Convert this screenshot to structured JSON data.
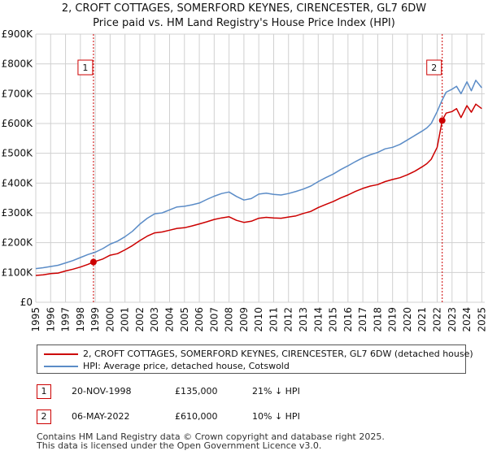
{
  "title_line1": "2, CROFT COTTAGES, SOMERFORD KEYNES, CIRENCESTER, GL7 6DW",
  "title_line2": "Price paid vs. HM Land Registry's House Price Index (HPI)",
  "chart_data": {
    "type": "line",
    "title": "2, CROFT COTTAGES, SOMERFORD KEYNES, CIRENCESTER, GL7 6DW — Price paid vs. HM Land Registry's House Price Index (HPI)",
    "xlabel": "",
    "ylabel": "",
    "xlim": [
      1995,
      2025.2
    ],
    "ylim": [
      0,
      900000
    ],
    "x_ticks": [
      "1995",
      "1996",
      "1997",
      "1998",
      "1999",
      "2000",
      "2001",
      "2002",
      "2003",
      "2004",
      "2005",
      "2006",
      "2007",
      "2008",
      "2009",
      "2010",
      "2011",
      "2012",
      "2013",
      "2014",
      "2015",
      "2016",
      "2017",
      "2018",
      "2019",
      "2020",
      "2021",
      "2022",
      "2023",
      "2024",
      "2025"
    ],
    "y_ticks": [
      {
        "value": 0,
        "label": "£0"
      },
      {
        "value": 100000,
        "label": "£100K"
      },
      {
        "value": 200000,
        "label": "£200K"
      },
      {
        "value": 300000,
        "label": "£300K"
      },
      {
        "value": 400000,
        "label": "£400K"
      },
      {
        "value": 500000,
        "label": "£500K"
      },
      {
        "value": 600000,
        "label": "£600K"
      },
      {
        "value": 700000,
        "label": "£700K"
      },
      {
        "value": 800000,
        "label": "£800K"
      },
      {
        "value": 900000,
        "label": "£900K"
      }
    ],
    "grid": true,
    "series": [
      {
        "name": "2, CROFT COTTAGES, SOMERFORD KEYNES, CIRENCESTER, GL7 6DW (detached house)",
        "color": "#cc0000",
        "x": [
          1995,
          1995.5,
          1996,
          1996.5,
          1997,
          1997.5,
          1998,
          1998.5,
          1998.88,
          1999.5,
          2000,
          2000.5,
          2001,
          2001.5,
          2002,
          2002.5,
          2003,
          2003.5,
          2004,
          2004.5,
          2005,
          2005.5,
          2006,
          2006.5,
          2007,
          2007.5,
          2008,
          2008.5,
          2009,
          2009.5,
          2010,
          2010.5,
          2011,
          2011.5,
          2012,
          2012.5,
          2013,
          2013.5,
          2014,
          2014.5,
          2015,
          2015.5,
          2016,
          2016.5,
          2017,
          2017.5,
          2018,
          2018.5,
          2019,
          2019.5,
          2020,
          2020.5,
          2021,
          2021.3,
          2021.6,
          2022,
          2022.34,
          2022.6,
          2023,
          2023.3,
          2023.6,
          2024,
          2024.3,
          2024.6,
          2025
        ],
        "y": [
          90000,
          92000,
          96000,
          98000,
          105000,
          111000,
          118000,
          127000,
          135000,
          145000,
          158000,
          163000,
          176000,
          190000,
          207000,
          222000,
          233000,
          236000,
          242000,
          248000,
          250000,
          256000,
          263000,
          270000,
          278000,
          283000,
          287000,
          275000,
          268000,
          272000,
          282000,
          285000,
          283000,
          282000,
          286000,
          290000,
          298000,
          305000,
          318000,
          328000,
          338000,
          350000,
          360000,
          372000,
          382000,
          390000,
          395000,
          405000,
          412000,
          418000,
          428000,
          440000,
          455000,
          465000,
          480000,
          520000,
          610000,
          635000,
          640000,
          650000,
          620000,
          660000,
          638000,
          665000,
          650000
        ]
      },
      {
        "name": "HPI: Average price, detached house, Cotswold",
        "color": "#5b8cc7",
        "x": [
          1995,
          1995.5,
          1996,
          1996.5,
          1997,
          1997.5,
          1998,
          1998.5,
          1999,
          1999.5,
          2000,
          2000.5,
          2001,
          2001.5,
          2002,
          2002.5,
          2003,
          2003.5,
          2004,
          2004.5,
          2005,
          2005.5,
          2006,
          2006.5,
          2007,
          2007.5,
          2008,
          2008.5,
          2009,
          2009.5,
          2010,
          2010.5,
          2011,
          2011.5,
          2012,
          2012.5,
          2013,
          2013.5,
          2014,
          2014.5,
          2015,
          2015.5,
          2016,
          2016.5,
          2017,
          2017.5,
          2018,
          2018.5,
          2019,
          2019.5,
          2020,
          2020.5,
          2021,
          2021.3,
          2021.6,
          2022,
          2022.3,
          2022.6,
          2023,
          2023.3,
          2023.6,
          2024,
          2024.3,
          2024.6,
          2025
        ],
        "y": [
          113000,
          116000,
          120000,
          124000,
          132000,
          140000,
          150000,
          160000,
          168000,
          180000,
          195000,
          205000,
          220000,
          238000,
          262000,
          282000,
          297000,
          300000,
          310000,
          320000,
          322000,
          327000,
          333000,
          345000,
          356000,
          365000,
          370000,
          355000,
          343000,
          348000,
          363000,
          366000,
          362000,
          360000,
          365000,
          372000,
          380000,
          390000,
          405000,
          418000,
          430000,
          445000,
          458000,
          472000,
          485000,
          495000,
          503000,
          515000,
          520000,
          530000,
          545000,
          560000,
          575000,
          585000,
          600000,
          640000,
          675000,
          705000,
          715000,
          725000,
          700000,
          740000,
          710000,
          745000,
          720000
        ]
      }
    ],
    "annotations": [
      {
        "label": "1",
        "x": 1998.88,
        "y": 135000
      },
      {
        "label": "2",
        "x": 2022.34,
        "y": 610000
      }
    ]
  },
  "legend": {
    "items": [
      {
        "label": "2, CROFT COTTAGES, SOMERFORD KEYNES, CIRENCESTER, GL7 6DW (detached house)",
        "color": "#cc0000"
      },
      {
        "label": "HPI: Average price, detached house, Cotswold",
        "color": "#5b8cc7"
      }
    ]
  },
  "sales": [
    {
      "num": "1",
      "date": "20-NOV-1998",
      "price": "£135,000",
      "hpi": "21% ↓ HPI"
    },
    {
      "num": "2",
      "date": "06-MAY-2022",
      "price": "£610,000",
      "hpi": "10% ↓ HPI"
    }
  ],
  "footer": {
    "line1": "Contains HM Land Registry data © Crown copyright and database right 2025.",
    "line2": "This data is licensed under the Open Government Licence v3.0."
  }
}
